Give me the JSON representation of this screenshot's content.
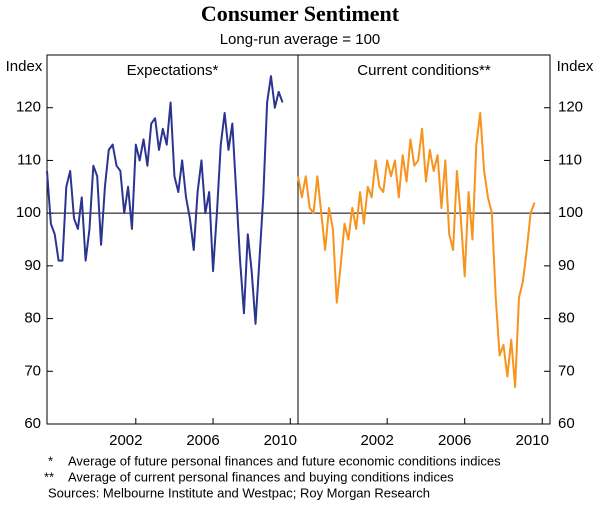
{
  "title": "Consumer Sentiment",
  "subtitle": "Long-run average = 100",
  "notes": [
    {
      "marker": "*",
      "text": "Average of future personal finances and future economic conditions indices"
    },
    {
      "marker": "**",
      "text": "Average of current personal finances and buying conditions indices"
    }
  ],
  "source": "Sources: Melbourne Institute and Westpac; Roy Morgan Research",
  "chart_data": [
    {
      "type": "line",
      "title": "Expectations*",
      "ylabel": "Index",
      "axis_side": "left",
      "color": "#2b3590",
      "x": [
        1997.4,
        1997.6,
        1997.8,
        1998.0,
        1998.2,
        1998.4,
        1998.6,
        1998.8,
        1999.0,
        1999.2,
        1999.4,
        1999.6,
        1999.8,
        2000.0,
        2000.2,
        2000.4,
        2000.6,
        2000.8,
        2001.0,
        2001.2,
        2001.4,
        2001.6,
        2001.8,
        2002.0,
        2002.2,
        2002.4,
        2002.6,
        2002.8,
        2003.0,
        2003.2,
        2003.4,
        2003.6,
        2003.8,
        2004.0,
        2004.2,
        2004.4,
        2004.6,
        2004.8,
        2005.0,
        2005.2,
        2005.4,
        2005.6,
        2005.8,
        2006.0,
        2006.2,
        2006.4,
        2006.6,
        2006.8,
        2007.0,
        2007.2,
        2007.4,
        2007.6,
        2007.8,
        2008.0,
        2008.2,
        2008.4,
        2008.6,
        2008.8,
        2009.0,
        2009.2,
        2009.4,
        2009.6
      ],
      "values": [
        108,
        98,
        96,
        91,
        91,
        105,
        108,
        99,
        97,
        103,
        91,
        97,
        109,
        107,
        94,
        105,
        112,
        113,
        109,
        108,
        100,
        105,
        97,
        113,
        110,
        114,
        109,
        117,
        118,
        112,
        116,
        113,
        121,
        107,
        104,
        110,
        103,
        99,
        93,
        104,
        110,
        100,
        104,
        89,
        100,
        113,
        119,
        112,
        117,
        104,
        91,
        81,
        96,
        89,
        79,
        91,
        103,
        121,
        126,
        120,
        123,
        121
      ],
      "xlim": [
        1997.4,
        2010.4
      ],
      "xticks": [
        2002,
        2006,
        2010
      ],
      "ylim": [
        60,
        130
      ],
      "yticks": [
        60,
        70,
        80,
        90,
        100,
        110,
        120
      ],
      "reference_line": 100
    },
    {
      "type": "line",
      "title": "Current conditions**",
      "ylabel": "Index",
      "axis_side": "right",
      "color": "#f7941d",
      "x": [
        1997.4,
        1997.6,
        1997.8,
        1998.0,
        1998.2,
        1998.4,
        1998.6,
        1998.8,
        1999.0,
        1999.2,
        1999.4,
        1999.6,
        1999.8,
        2000.0,
        2000.2,
        2000.4,
        2000.6,
        2000.8,
        2001.0,
        2001.2,
        2001.4,
        2001.6,
        2001.8,
        2002.0,
        2002.2,
        2002.4,
        2002.6,
        2002.8,
        2003.0,
        2003.2,
        2003.4,
        2003.6,
        2003.8,
        2004.0,
        2004.2,
        2004.4,
        2004.6,
        2004.8,
        2005.0,
        2005.2,
        2005.4,
        2005.6,
        2005.8,
        2006.0,
        2006.2,
        2006.4,
        2006.6,
        2006.8,
        2007.0,
        2007.2,
        2007.4,
        2007.6,
        2007.8,
        2008.0,
        2008.2,
        2008.4,
        2008.6,
        2008.8,
        2009.0,
        2009.2,
        2009.4,
        2009.6
      ],
      "values": [
        107,
        103,
        107,
        101,
        100,
        107,
        100,
        93,
        101,
        97,
        83,
        90,
        98,
        95,
        101,
        97,
        104,
        98,
        105,
        103,
        110,
        105,
        104,
        110,
        107,
        110,
        103,
        111,
        106,
        114,
        109,
        110,
        116,
        106,
        112,
        108,
        111,
        101,
        110,
        96,
        93,
        108,
        99,
        88,
        104,
        95,
        113,
        119,
        108,
        103,
        100,
        84,
        73,
        75,
        69,
        76,
        67,
        84,
        87,
        93,
        100,
        102
      ],
      "xlim": [
        1997.4,
        2010.4
      ],
      "xticks": [
        2002,
        2006,
        2010
      ],
      "ylim": [
        60,
        130
      ],
      "yticks": [
        60,
        70,
        80,
        90,
        100,
        110,
        120
      ],
      "reference_line": 100
    }
  ]
}
